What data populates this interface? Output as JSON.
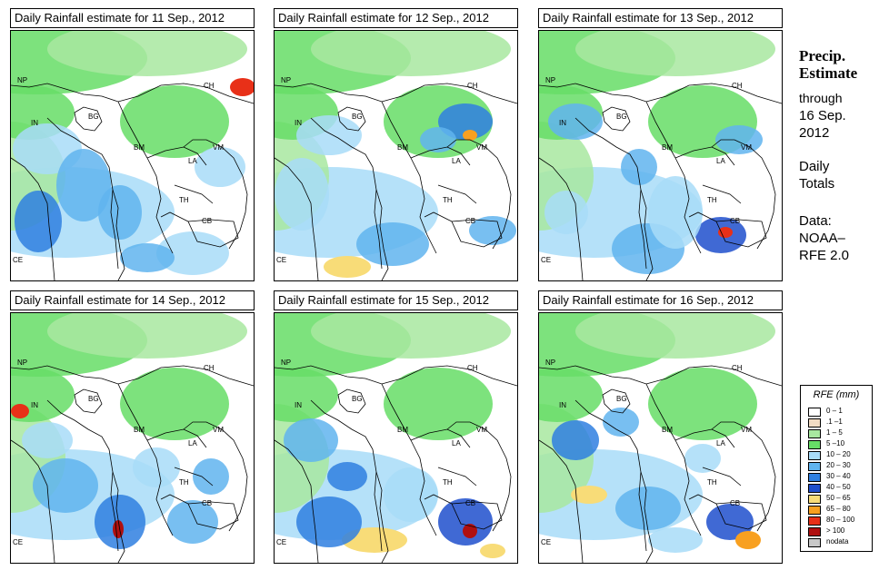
{
  "panels": [
    {
      "title": "Daily Rainfall estimate for  11 Sep., 2012",
      "seed": 11,
      "intensity": 0.35
    },
    {
      "title": "Daily Rainfall estimate for  12 Sep., 2012",
      "seed": 12,
      "intensity": 0.5
    },
    {
      "title": "Daily Rainfall estimate for  13 Sep., 2012",
      "seed": 13,
      "intensity": 0.6
    },
    {
      "title": "Daily Rainfall estimate for  14 Sep., 2012",
      "seed": 14,
      "intensity": 0.7
    },
    {
      "title": "Daily Rainfall estimate for  15 Sep., 2012",
      "seed": 15,
      "intensity": 0.8
    },
    {
      "title": "Daily Rainfall estimate for  16 Sep., 2012",
      "seed": 16,
      "intensity": 0.6
    }
  ],
  "country_labels": [
    "NP",
    "CH",
    "IN",
    "BG",
    "BM",
    "VM",
    "LA",
    "TH",
    "CB",
    "CE"
  ],
  "side": {
    "line1": "Precip.",
    "line2": "Estimate",
    "line3": "through",
    "line4": "16 Sep.",
    "line5": "2012",
    "line6": "Daily",
    "line7": "Totals",
    "line8": "Data:",
    "line9": "NOAA–",
    "line10": "RFE 2.0"
  },
  "legend": {
    "title": "RFE (mm)",
    "items": [
      {
        "label": "0 – 1",
        "color": "#ffffff"
      },
      {
        "label": ".1 –1",
        "color": "#f2dcc4"
      },
      {
        "label": "1 – 5",
        "color": "#a8e8a0"
      },
      {
        "label": "5 –10",
        "color": "#66dd66"
      },
      {
        "label": "10 – 20",
        "color": "#a8dcf8"
      },
      {
        "label": "20 – 30",
        "color": "#60b4ee"
      },
      {
        "label": "30 – 40",
        "color": "#2f7fe0"
      },
      {
        "label": "40 – 50",
        "color": "#1f4fcc"
      },
      {
        "label": "50 – 65",
        "color": "#f8dc78"
      },
      {
        "label": "65 – 80",
        "color": "#f8a020"
      },
      {
        "label": "80 – 100",
        "color": "#e83018"
      },
      {
        "label": "> 100",
        "color": "#b01010"
      },
      {
        "label": "nodata",
        "color": "#c8c8c8"
      }
    ]
  }
}
